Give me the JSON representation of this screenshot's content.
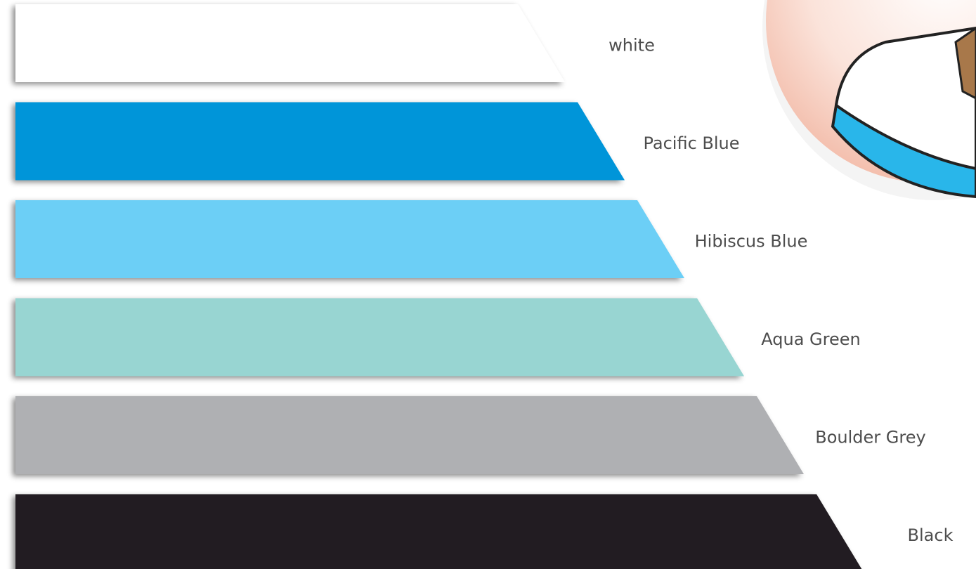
{
  "swatches": [
    {
      "label": "white",
      "color": "#ffffff"
    },
    {
      "label": "Pacific Blue",
      "color": "#0095d9"
    },
    {
      "label": "Hibiscus Blue",
      "color": "#6ccff6"
    },
    {
      "label": "Aqua Green",
      "color": "#98d5d2"
    },
    {
      "label": "Boulder Grey",
      "color": "#afb0b3"
    },
    {
      "label": "Black",
      "color": "#231f20"
    }
  ]
}
